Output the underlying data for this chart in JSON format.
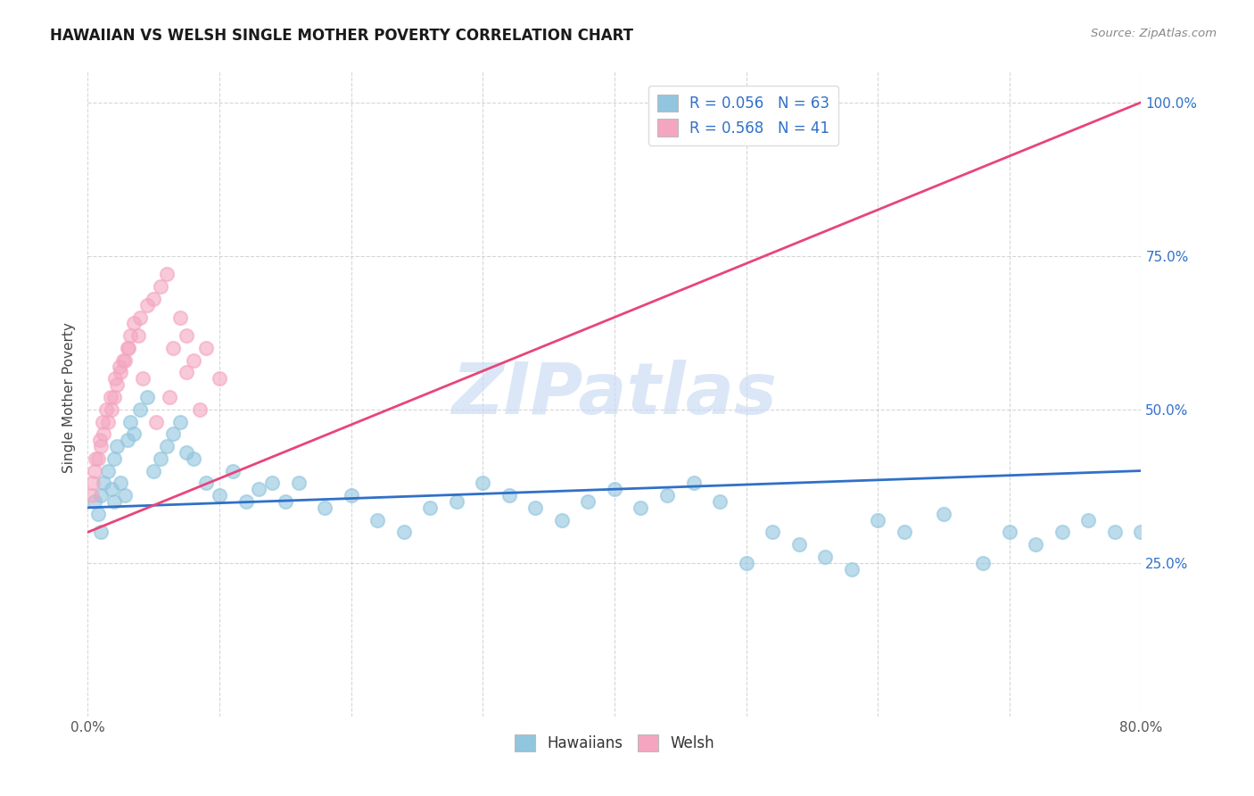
{
  "title": "HAWAIIAN VS WELSH SINGLE MOTHER POVERTY CORRELATION CHART",
  "source": "Source: ZipAtlas.com",
  "ylabel": "Single Mother Poverty",
  "r_hawaiians": 0.056,
  "n_hawaiians": 63,
  "r_welsh": 0.568,
  "n_welsh": 41,
  "color_hawaiians": "#92c5de",
  "color_welsh": "#f4a6c0",
  "color_line_hawaiians": "#3070c8",
  "color_line_welsh": "#e8457a",
  "watermark_color": "#ccddf5",
  "legend_hawaiians": "Hawaiians",
  "legend_welsh": "Welsh",
  "haw_x": [
    0.5,
    0.8,
    1.0,
    1.2,
    1.5,
    1.8,
    2.0,
    2.2,
    2.5,
    2.8,
    3.0,
    3.2,
    3.5,
    4.0,
    4.5,
    5.0,
    5.5,
    6.0,
    6.5,
    7.0,
    7.5,
    8.0,
    9.0,
    10.0,
    11.0,
    12.0,
    13.0,
    14.0,
    15.0,
    16.0,
    18.0,
    20.0,
    22.0,
    24.0,
    26.0,
    28.0,
    30.0,
    32.0,
    34.0,
    36.0,
    38.0,
    40.0,
    42.0,
    44.0,
    46.0,
    48.0,
    50.0,
    52.0,
    54.0,
    56.0,
    58.0,
    60.0,
    62.0,
    65.0,
    68.0,
    70.0,
    72.0,
    74.0,
    76.0,
    78.0,
    80.0,
    1.0,
    2.0
  ],
  "haw_y": [
    35,
    33,
    36,
    38,
    40,
    37,
    42,
    44,
    38,
    36,
    45,
    48,
    46,
    50,
    52,
    40,
    42,
    44,
    46,
    48,
    43,
    42,
    38,
    36,
    40,
    35,
    37,
    38,
    35,
    38,
    34,
    36,
    32,
    30,
    34,
    35,
    38,
    36,
    34,
    32,
    35,
    37,
    34,
    36,
    38,
    35,
    25,
    30,
    28,
    26,
    24,
    32,
    30,
    33,
    25,
    30,
    28,
    30,
    32,
    30,
    30,
    30,
    35
  ],
  "welsh_x": [
    0.3,
    0.5,
    0.8,
    1.0,
    1.2,
    1.5,
    1.8,
    2.0,
    2.2,
    2.5,
    2.8,
    3.0,
    3.2,
    3.5,
    4.0,
    4.5,
    5.0,
    5.5,
    6.0,
    6.5,
    7.0,
    7.5,
    8.0,
    9.0,
    10.0,
    0.4,
    0.6,
    0.9,
    1.1,
    1.4,
    1.7,
    2.1,
    2.4,
    2.7,
    3.1,
    3.8,
    4.2,
    5.2,
    6.2,
    7.5,
    8.5
  ],
  "welsh_y": [
    36,
    40,
    42,
    44,
    46,
    48,
    50,
    52,
    54,
    56,
    58,
    60,
    62,
    64,
    65,
    67,
    68,
    70,
    72,
    60,
    65,
    62,
    58,
    60,
    55,
    38,
    42,
    45,
    48,
    50,
    52,
    55,
    57,
    58,
    60,
    62,
    55,
    48,
    52,
    56,
    50
  ],
  "xlim": [
    0,
    80
  ],
  "ylim": [
    0,
    105
  ],
  "xtick_labels": [
    "0.0%",
    "",
    "",
    "",
    "",
    "",
    "",
    "",
    "80.0%"
  ],
  "ytick_values": [
    25,
    50,
    75,
    100
  ],
  "ytick_labels": [
    "25.0%",
    "50.0%",
    "75.0%",
    "100.0%"
  ]
}
